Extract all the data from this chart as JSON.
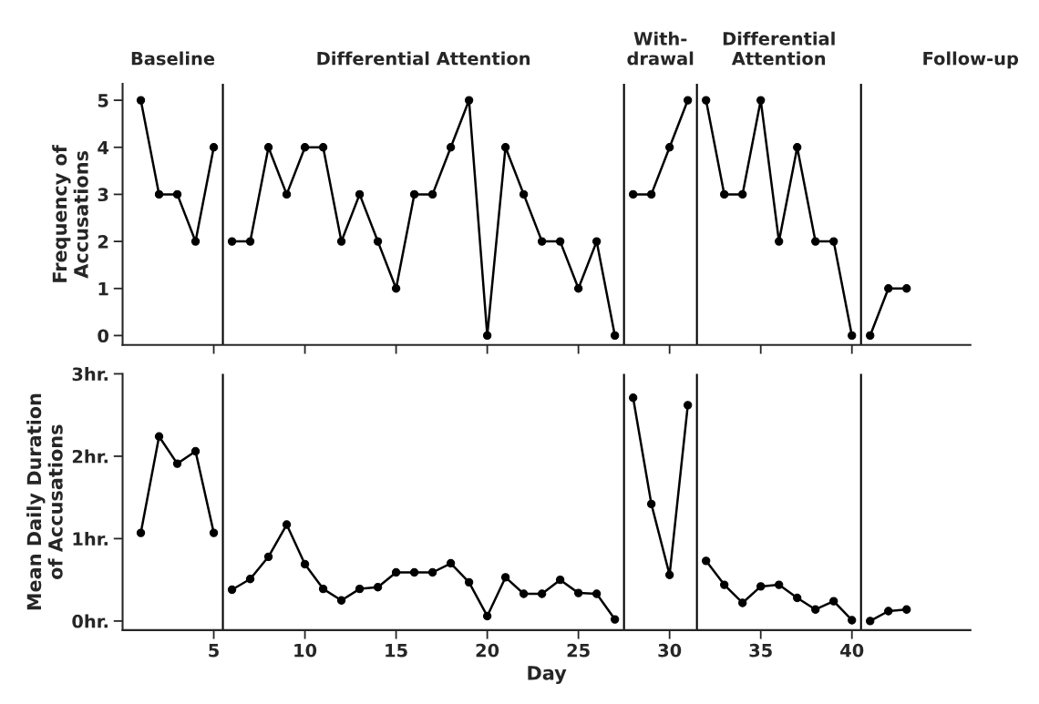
{
  "chart_data": [
    {
      "type": "line",
      "ylabel": "Frequency of\nAccusations",
      "xlim": [
        0,
        46.5
      ],
      "xticks": [
        5,
        10,
        15,
        20,
        25,
        30,
        35,
        40
      ],
      "ylim": [
        -0.2,
        5.35
      ],
      "yticks": [
        0,
        1,
        2,
        3,
        4,
        5
      ],
      "tick_labels": "y",
      "marker": "circle",
      "line_style": "solid",
      "grid": false,
      "series": [
        {
          "color": "#000000",
          "x": [
            1,
            2,
            3,
            4,
            5
          ],
          "values": [
            5,
            3,
            3,
            2,
            4
          ]
        },
        {
          "color": "#000000",
          "x": [
            6,
            7,
            8,
            9,
            10,
            11,
            12,
            13,
            14,
            15,
            16,
            17,
            18,
            19,
            20,
            21,
            22,
            23,
            24,
            25,
            26,
            27
          ],
          "values": [
            2,
            2,
            4,
            3,
            4,
            4,
            2,
            3,
            2,
            1,
            3,
            3,
            4,
            5,
            0,
            4,
            3,
            2,
            2,
            1,
            2,
            0
          ]
        },
        {
          "color": "#000000",
          "x": [
            28,
            29,
            30,
            31
          ],
          "values": [
            3,
            3,
            4,
            5
          ]
        },
        {
          "color": "#000000",
          "x": [
            32,
            33,
            34,
            35,
            36,
            37,
            38,
            39,
            40
          ],
          "values": [
            5,
            3,
            3,
            5,
            2,
            4,
            2,
            2,
            0
          ]
        },
        {
          "color": "#000000",
          "x": [
            41,
            42,
            43
          ],
          "values": [
            0,
            1,
            1
          ]
        }
      ],
      "ref_lines": [
        {
          "axis": "x",
          "value": 5.5
        },
        {
          "axis": "x",
          "value": 27.5
        },
        {
          "axis": "x",
          "value": 31.5
        },
        {
          "axis": "x",
          "value": 40.5
        }
      ],
      "annotations": [
        "Baseline",
        "Differential Attention",
        "With-\ndrawal",
        "Differential\nAttention",
        "Follow-up"
      ]
    },
    {
      "type": "line",
      "xlabel": "Day",
      "ylabel": "Mean Daily Duration\nof Accusations",
      "xlim": [
        0,
        46.5
      ],
      "xticks": [
        5,
        10,
        15,
        20,
        25,
        30,
        35,
        40
      ],
      "ylim": [
        -0.11,
        3.0
      ],
      "yticks": [
        {
          "value": 0,
          "label": "0hr."
        },
        {
          "value": 1,
          "label": "1hr."
        },
        {
          "value": 2,
          "label": "2hr."
        },
        {
          "value": 3,
          "label": "3hr."
        }
      ],
      "marker": "circle",
      "line_style": "solid",
      "grid": false,
      "series": [
        {
          "color": "#000000",
          "x": [
            1,
            2,
            3,
            4,
            5
          ],
          "values": [
            1.07,
            2.24,
            1.91,
            2.06,
            1.07
          ]
        },
        {
          "color": "#000000",
          "x": [
            6,
            7,
            8,
            9,
            10,
            11,
            12,
            13,
            14,
            15,
            16,
            17,
            18,
            19,
            20,
            21,
            22,
            23,
            24,
            25,
            26,
            27
          ],
          "values": [
            0.38,
            0.51,
            0.78,
            1.17,
            0.69,
            0.39,
            0.25,
            0.39,
            0.41,
            0.59,
            0.59,
            0.59,
            0.7,
            0.47,
            0.06,
            0.53,
            0.33,
            0.33,
            0.5,
            0.34,
            0.33,
            0.02
          ]
        },
        {
          "color": "#000000",
          "x": [
            28,
            29,
            30,
            31
          ],
          "values": [
            2.71,
            1.42,
            0.56,
            2.62
          ]
        },
        {
          "color": "#000000",
          "x": [
            32,
            33,
            34,
            35,
            36,
            37,
            38,
            39,
            40
          ],
          "values": [
            0.73,
            0.44,
            0.22,
            0.42,
            0.44,
            0.28,
            0.14,
            0.24,
            0.01
          ]
        },
        {
          "color": "#000000",
          "x": [
            41,
            42,
            43
          ],
          "values": [
            0.0,
            0.12,
            0.14
          ]
        }
      ],
      "ref_lines": [
        {
          "axis": "x",
          "value": 5.5
        },
        {
          "axis": "x",
          "value": 27.5
        },
        {
          "axis": "x",
          "value": 31.5
        },
        {
          "axis": "x",
          "value": 40.5
        }
      ]
    }
  ]
}
